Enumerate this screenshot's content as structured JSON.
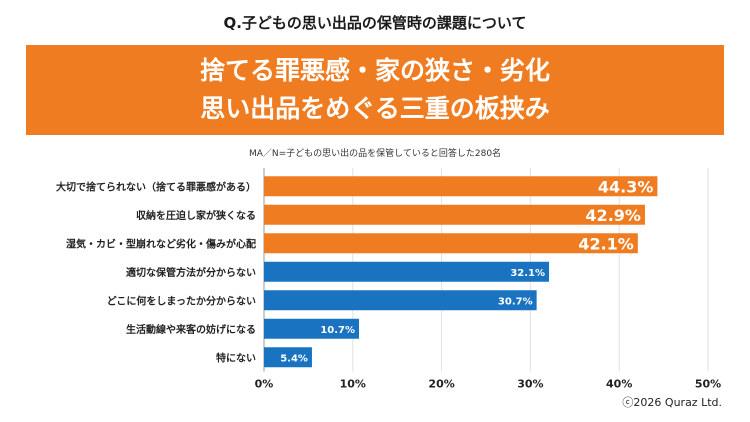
{
  "header": {
    "question": "Q.子どもの思い出品の保管時の課題について",
    "banner_line1": "捨てる罪悪感・家の狭さ・劣化",
    "banner_line2": "思い出品をめぐる三重の板挟み"
  },
  "note": "MA／N=子どもの思い出の品を保管していると回答した280名",
  "copyright": "ⓒ2026 Quraz Ltd.",
  "colors": {
    "accent": "#f07c22",
    "highlight_bar": "#f07c22",
    "standard_bar": "#1a73c0"
  },
  "chart_data": {
    "type": "bar",
    "orientation": "horizontal",
    "categories": [
      "大切で捨てられない（捨てる罪悪感がある）",
      "収納を圧迫し家が狭くなる",
      "湿気・カビ・型崩れなど劣化・傷みが心配",
      "適切な保管方法が分からない",
      "どこに何をしまったか分からない",
      "生活動線や来客の妨げになる",
      "特にない"
    ],
    "values": [
      44.3,
      42.9,
      42.1,
      32.1,
      30.7,
      10.7,
      5.4
    ],
    "value_labels": [
      "44.3%",
      "42.9%",
      "42.1%",
      "32.1%",
      "30.7%",
      "10.7%",
      "5.4%"
    ],
    "highlighted": [
      true,
      true,
      true,
      false,
      false,
      false,
      false
    ],
    "xlim": [
      0,
      50
    ],
    "xticks": [
      0,
      10,
      20,
      30,
      40,
      50
    ],
    "xtick_labels": [
      "0%",
      "10%",
      "20%",
      "30%",
      "40%",
      "50%"
    ],
    "grid": "vertical"
  }
}
